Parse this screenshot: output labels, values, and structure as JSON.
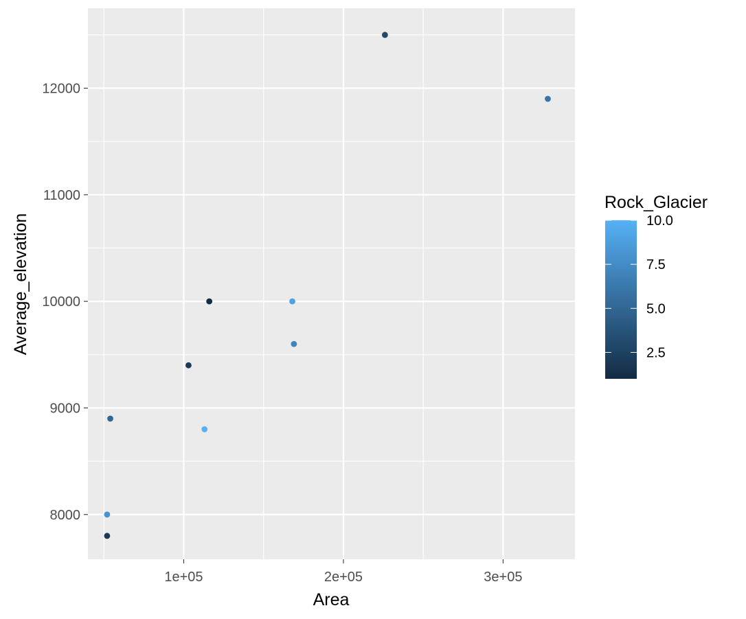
{
  "chart_data": {
    "type": "scatter",
    "xlabel": "Area",
    "ylabel": "Average_elevation",
    "xlim": [
      40000,
      345000
    ],
    "ylim": [
      7580,
      12750
    ],
    "x_ticks": [
      100000,
      200000,
      300000
    ],
    "x_tick_labels": [
      "1e+05",
      "2e+05",
      "3e+05"
    ],
    "y_ticks": [
      8000,
      9000,
      10000,
      11000,
      12000
    ],
    "y_tick_labels": [
      "8000",
      "9000",
      "10000",
      "11000",
      "12000"
    ],
    "grid": true,
    "legend": {
      "title": "Rock_Glacier",
      "position": "right",
      "type": "colorbar",
      "range": [
        1,
        10
      ],
      "breaks": [
        2.5,
        5.0,
        7.5,
        10.0
      ],
      "break_labels": [
        "2.5",
        "5.0",
        "7.5",
        "10.0"
      ],
      "low_color": "#132B43",
      "high_color": "#56B1F7"
    },
    "points": [
      {
        "x": 226000,
        "y": 12500,
        "color_value": 3
      },
      {
        "x": 328000,
        "y": 11900,
        "color_value": 6
      },
      {
        "x": 116000,
        "y": 10000,
        "color_value": 1
      },
      {
        "x": 168000,
        "y": 10000,
        "color_value": 9
      },
      {
        "x": 169000,
        "y": 9600,
        "color_value": 7
      },
      {
        "x": 103000,
        "y": 9400,
        "color_value": 2
      },
      {
        "x": 54000,
        "y": 8900,
        "color_value": 5
      },
      {
        "x": 113000,
        "y": 8800,
        "color_value": 10
      },
      {
        "x": 52000,
        "y": 8000,
        "color_value": 8
      },
      {
        "x": 52000,
        "y": 7800,
        "color_value": 2
      }
    ]
  }
}
